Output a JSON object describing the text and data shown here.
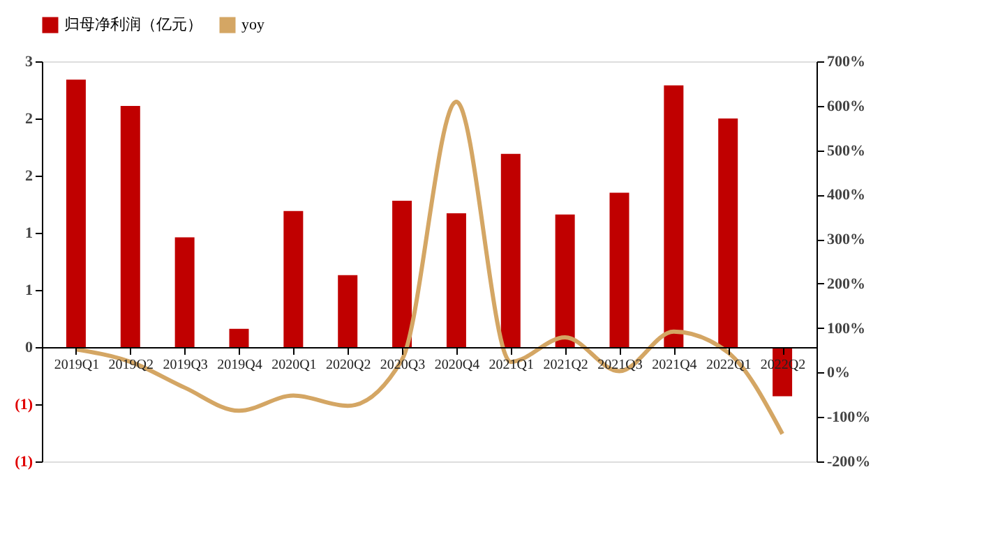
{
  "chart_data": {
    "type": "bar",
    "legend": "top",
    "grid": false,
    "categories": [
      "2019Q1",
      "2019Q2",
      "2019Q3",
      "2019Q4",
      "2020Q1",
      "2020Q2",
      "2020Q3",
      "2020Q4",
      "2021Q1",
      "2021Q2",
      "2021Q3",
      "2021Q4",
      "2022Q1",
      "2022Q2"
    ],
    "series": [
      {
        "name": "归母净利润（亿元）",
        "color": "#c00000",
        "values": [
          2.34,
          2.11,
          0.96,
          0.16,
          1.19,
          0.63,
          1.28,
          1.17,
          1.69,
          1.16,
          1.35,
          2.29,
          2.0,
          -0.43
        ]
      },
      {
        "name": "yoy",
        "type": "line",
        "axis": "y2",
        "color": "#d4a664",
        "values": [
          52,
          24,
          -34,
          -86,
          -52,
          -75,
          29,
          609,
          24,
          79,
          3,
          92,
          45,
          -138
        ]
      }
    ],
    "ylim": [
      -1,
      2.5
    ],
    "yticks": [
      {
        "value": 2.5,
        "label": "3"
      },
      {
        "value": 2,
        "label": "2"
      },
      {
        "value": 1.5,
        "label": "2"
      },
      {
        "value": 1,
        "label": "1"
      },
      {
        "value": 0.5,
        "label": "1"
      },
      0,
      {
        "value": -0.5,
        "label": "(1)"
      },
      {
        "value": -1,
        "label": "(1)"
      }
    ],
    "y2lim": [
      -200,
      700
    ],
    "y2ticks": [
      {
        "value": 700,
        "label": "700%"
      },
      {
        "value": 600,
        "label": "600%"
      },
      {
        "value": 500,
        "label": "500%"
      },
      {
        "value": 400,
        "label": "400%"
      },
      {
        "value": 300,
        "label": "300%"
      },
      {
        "value": 200,
        "label": "200%"
      },
      {
        "value": 100,
        "label": "100%"
      },
      {
        "value": 0,
        "label": "0%"
      },
      {
        "value": -100,
        "label": "-100%"
      },
      {
        "value": -200,
        "label": "-200%"
      }
    ]
  }
}
